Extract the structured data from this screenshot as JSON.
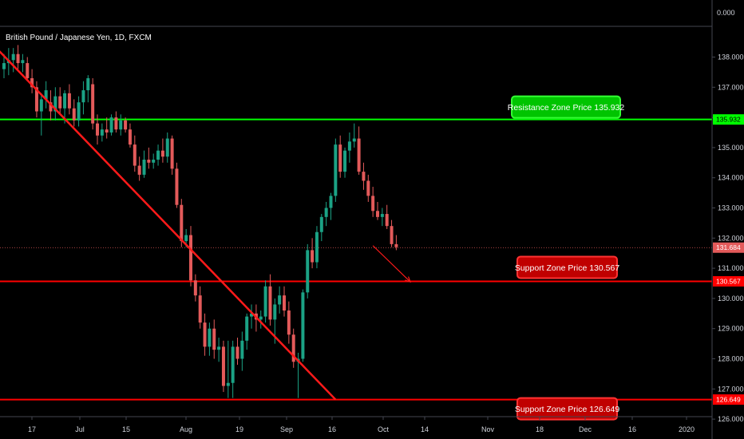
{
  "colors": {
    "background": "#000000",
    "up": "#1ba285",
    "down": "#e35a5a",
    "support": "#ff0000",
    "resistance": "#00ff00",
    "trend": "#ff1a1a",
    "last_price": "#e35a5a"
  },
  "chart_data": {
    "type": "candlestick",
    "title": "British Pound / Japanese Yen, 1D, FXCM",
    "grid": false,
    "ylim": [
      126.0,
      138.9
    ],
    "top_label": "0.000",
    "y_ticks": [
      "138.000",
      "137.000",
      "136.000",
      "135.000",
      "134.000",
      "133.000",
      "132.000",
      "131.000",
      "130.000",
      "129.000",
      "128.000",
      "127.000",
      "126.000"
    ],
    "x_ticks": [
      "17",
      "Jul",
      "15",
      "Aug",
      "19",
      "Sep",
      "16",
      "Oct",
      "14",
      "Nov",
      "18",
      "Dec",
      "16",
      "2020"
    ],
    "levels": [
      {
        "name": "resistance",
        "value": 135.932,
        "label": "Resistance Zone Price 135.932",
        "tag": "135.932"
      },
      {
        "name": "support-1",
        "value": 130.567,
        "label": "Support Zone Price 130.567",
        "tag": "130.567"
      },
      {
        "name": "support-2",
        "value": 126.649,
        "label": "Support Zone Price 126.649",
        "tag": "126.649"
      }
    ],
    "last_price": {
      "value": 131.684,
      "tag": "131.684"
    },
    "trendline": {
      "from": {
        "index": -6,
        "value": 139.0
      },
      "to": {
        "index": 71,
        "value": 126.649
      }
    },
    "projection": {
      "from": {
        "index": 79,
        "value": 131.75
      },
      "to": {
        "index": 87,
        "value": 130.55
      }
    },
    "candles": [
      {
        "o": 137.6,
        "h": 138.1,
        "l": 137.3,
        "c": 137.8
      },
      {
        "o": 137.8,
        "h": 138.3,
        "l": 137.4,
        "c": 137.9
      },
      {
        "o": 137.9,
        "h": 138.3,
        "l": 137.5,
        "c": 138.1
      },
      {
        "o": 138.1,
        "h": 138.4,
        "l": 137.6,
        "c": 137.8
      },
      {
        "o": 137.8,
        "h": 138.1,
        "l": 137.5,
        "c": 137.9
      },
      {
        "o": 137.8,
        "h": 138.0,
        "l": 137.2,
        "c": 137.3
      },
      {
        "o": 137.3,
        "h": 137.6,
        "l": 136.8,
        "c": 137.0
      },
      {
        "o": 137.0,
        "h": 137.2,
        "l": 136.0,
        "c": 136.2
      },
      {
        "o": 136.2,
        "h": 136.8,
        "l": 135.4,
        "c": 136.6
      },
      {
        "o": 136.6,
        "h": 137.2,
        "l": 136.3,
        "c": 136.9
      },
      {
        "o": 136.5,
        "h": 136.9,
        "l": 135.9,
        "c": 136.2
      },
      {
        "o": 136.2,
        "h": 137.0,
        "l": 135.9,
        "c": 136.7
      },
      {
        "o": 136.7,
        "h": 137.0,
        "l": 136.1,
        "c": 136.3
      },
      {
        "o": 136.3,
        "h": 136.9,
        "l": 135.8,
        "c": 136.8
      },
      {
        "o": 136.8,
        "h": 137.1,
        "l": 136.1,
        "c": 136.3
      },
      {
        "o": 136.3,
        "h": 136.6,
        "l": 135.7,
        "c": 135.9
      },
      {
        "o": 135.9,
        "h": 136.7,
        "l": 135.7,
        "c": 136.5
      },
      {
        "o": 136.5,
        "h": 137.2,
        "l": 136.1,
        "c": 136.9
      },
      {
        "o": 136.9,
        "h": 137.4,
        "l": 136.5,
        "c": 137.3
      },
      {
        "o": 137.1,
        "h": 137.3,
        "l": 135.6,
        "c": 135.8
      },
      {
        "o": 135.8,
        "h": 136.1,
        "l": 135.1,
        "c": 135.4
      },
      {
        "o": 135.4,
        "h": 135.8,
        "l": 135.2,
        "c": 135.6
      },
      {
        "o": 135.6,
        "h": 136.0,
        "l": 135.3,
        "c": 135.5
      },
      {
        "o": 135.5,
        "h": 136.1,
        "l": 135.4,
        "c": 136.0
      },
      {
        "o": 136.0,
        "h": 136.2,
        "l": 135.5,
        "c": 135.6
      },
      {
        "o": 135.6,
        "h": 136.1,
        "l": 135.4,
        "c": 135.9
      },
      {
        "o": 135.9,
        "h": 136.0,
        "l": 135.5,
        "c": 135.6
      },
      {
        "o": 135.6,
        "h": 135.8,
        "l": 135.0,
        "c": 135.1
      },
      {
        "o": 135.1,
        "h": 135.4,
        "l": 134.2,
        "c": 134.4
      },
      {
        "o": 134.4,
        "h": 134.7,
        "l": 133.9,
        "c": 134.1
      },
      {
        "o": 134.1,
        "h": 134.9,
        "l": 134.0,
        "c": 134.6
      },
      {
        "o": 134.6,
        "h": 135.0,
        "l": 134.3,
        "c": 134.5
      },
      {
        "o": 134.5,
        "h": 134.8,
        "l": 134.3,
        "c": 134.6
      },
      {
        "o": 134.6,
        "h": 135.1,
        "l": 134.4,
        "c": 134.9
      },
      {
        "o": 134.9,
        "h": 135.3,
        "l": 134.5,
        "c": 134.7
      },
      {
        "o": 134.7,
        "h": 135.5,
        "l": 134.5,
        "c": 135.3
      },
      {
        "o": 135.3,
        "h": 135.4,
        "l": 134.1,
        "c": 134.3
      },
      {
        "o": 134.3,
        "h": 134.5,
        "l": 133.0,
        "c": 133.1
      },
      {
        "o": 133.1,
        "h": 133.3,
        "l": 131.7,
        "c": 131.9
      },
      {
        "o": 131.9,
        "h": 132.3,
        "l": 131.7,
        "c": 132.1
      },
      {
        "o": 132.1,
        "h": 132.4,
        "l": 130.4,
        "c": 130.6
      },
      {
        "o": 130.6,
        "h": 130.8,
        "l": 129.9,
        "c": 130.1
      },
      {
        "o": 130.1,
        "h": 130.4,
        "l": 129.0,
        "c": 129.2
      },
      {
        "o": 129.2,
        "h": 129.5,
        "l": 128.1,
        "c": 128.4
      },
      {
        "o": 128.4,
        "h": 129.2,
        "l": 128.1,
        "c": 129.0
      },
      {
        "o": 129.0,
        "h": 129.3,
        "l": 128.0,
        "c": 128.3
      },
      {
        "o": 128.3,
        "h": 128.7,
        "l": 127.9,
        "c": 128.4
      },
      {
        "o": 128.4,
        "h": 128.6,
        "l": 126.9,
        "c": 127.1
      },
      {
        "o": 127.1,
        "h": 128.6,
        "l": 126.7,
        "c": 127.2
      },
      {
        "o": 127.2,
        "h": 128.6,
        "l": 126.7,
        "c": 128.4
      },
      {
        "o": 128.4,
        "h": 128.7,
        "l": 127.8,
        "c": 128.0
      },
      {
        "o": 128.0,
        "h": 128.9,
        "l": 127.6,
        "c": 128.6
      },
      {
        "o": 128.6,
        "h": 129.5,
        "l": 128.3,
        "c": 129.4
      },
      {
        "o": 129.4,
        "h": 129.8,
        "l": 129.0,
        "c": 129.5
      },
      {
        "o": 129.5,
        "h": 129.8,
        "l": 128.9,
        "c": 129.3
      },
      {
        "o": 129.3,
        "h": 129.6,
        "l": 129.0,
        "c": 129.4
      },
      {
        "o": 129.4,
        "h": 130.6,
        "l": 129.2,
        "c": 130.4
      },
      {
        "o": 130.4,
        "h": 130.8,
        "l": 129.1,
        "c": 129.3
      },
      {
        "o": 129.3,
        "h": 130.0,
        "l": 128.5,
        "c": 129.8
      },
      {
        "o": 129.8,
        "h": 130.4,
        "l": 129.5,
        "c": 130.1
      },
      {
        "o": 130.1,
        "h": 130.4,
        "l": 129.4,
        "c": 129.6
      },
      {
        "o": 129.6,
        "h": 129.9,
        "l": 128.5,
        "c": 128.8
      },
      {
        "o": 128.8,
        "h": 129.0,
        "l": 127.7,
        "c": 127.9
      },
      {
        "o": 127.9,
        "h": 128.2,
        "l": 126.7,
        "c": 128.0
      },
      {
        "o": 128.0,
        "h": 130.3,
        "l": 127.9,
        "c": 130.2
      },
      {
        "o": 130.2,
        "h": 131.8,
        "l": 130.0,
        "c": 131.6
      },
      {
        "o": 131.6,
        "h": 132.0,
        "l": 131.0,
        "c": 131.2
      },
      {
        "o": 131.2,
        "h": 132.4,
        "l": 131.0,
        "c": 132.2
      },
      {
        "o": 132.2,
        "h": 132.8,
        "l": 131.9,
        "c": 132.7
      },
      {
        "o": 132.7,
        "h": 133.2,
        "l": 132.4,
        "c": 133.0
      },
      {
        "o": 133.0,
        "h": 133.5,
        "l": 132.6,
        "c": 133.4
      },
      {
        "o": 133.4,
        "h": 135.3,
        "l": 133.2,
        "c": 135.1
      },
      {
        "o": 135.1,
        "h": 135.4,
        "l": 134.0,
        "c": 134.2
      },
      {
        "o": 134.2,
        "h": 135.0,
        "l": 134.0,
        "c": 134.9
      },
      {
        "o": 134.9,
        "h": 135.5,
        "l": 134.5,
        "c": 135.2
      },
      {
        "o": 135.2,
        "h": 135.8,
        "l": 135.0,
        "c": 135.3
      },
      {
        "o": 135.3,
        "h": 135.7,
        "l": 134.1,
        "c": 134.2
      },
      {
        "o": 134.2,
        "h": 134.5,
        "l": 133.6,
        "c": 133.9
      },
      {
        "o": 133.9,
        "h": 134.1,
        "l": 133.2,
        "c": 133.4
      },
      {
        "o": 133.4,
        "h": 133.7,
        "l": 132.7,
        "c": 132.9
      },
      {
        "o": 132.9,
        "h": 133.2,
        "l": 132.6,
        "c": 132.7
      },
      {
        "o": 132.7,
        "h": 133.0,
        "l": 132.4,
        "c": 132.8
      },
      {
        "o": 132.8,
        "h": 133.1,
        "l": 132.3,
        "c": 132.4
      },
      {
        "o": 132.4,
        "h": 132.6,
        "l": 131.7,
        "c": 131.8
      },
      {
        "o": 131.8,
        "h": 132.1,
        "l": 131.6,
        "c": 131.7
      }
    ]
  }
}
